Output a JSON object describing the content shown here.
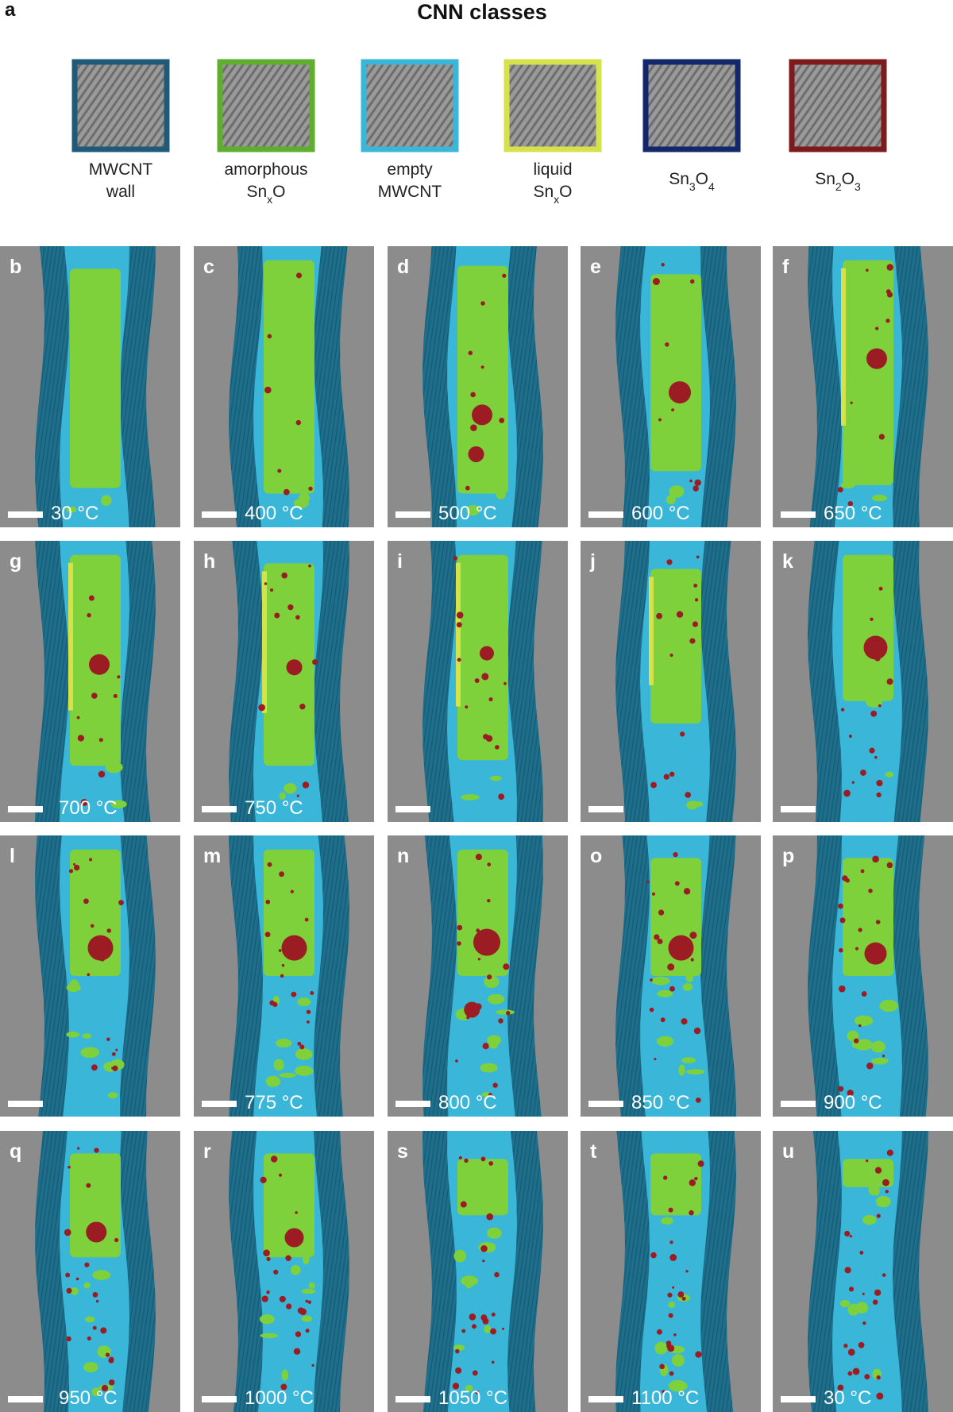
{
  "panel_a": {
    "letter": "a",
    "title": "CNN classes",
    "classes": [
      {
        "lines": [
          [
            "MWCNT"
          ],
          [
            "wall"
          ]
        ],
        "color": "#1f5a78"
      },
      {
        "lines": [
          [
            "amorphous"
          ],
          [
            "Sn",
            "x",
            "O"
          ]
        ],
        "color": "#5fae2e"
      },
      {
        "lines": [
          [
            "empty"
          ],
          [
            "MWCNT"
          ]
        ],
        "color": "#3ab6d8"
      },
      {
        "lines": [
          [
            "liquid"
          ],
          [
            "Sn",
            "x",
            "O"
          ]
        ],
        "color": "#d6e24a"
      },
      {
        "lines": [
          [
            "Sn",
            "3",
            "O",
            "4"
          ]
        ],
        "color": "#13286a"
      },
      {
        "lines": [
          [
            "Sn",
            "2",
            "O",
            "3"
          ]
        ],
        "color": "#7c1a1c"
      }
    ]
  },
  "panels": [
    {
      "letter": "b",
      "temperature": "30 °C"
    },
    {
      "letter": "c",
      "temperature": "400 °C"
    },
    {
      "letter": "d",
      "temperature": "500 °C"
    },
    {
      "letter": "e",
      "temperature": "600 °C"
    },
    {
      "letter": "f",
      "temperature": "650 °C"
    },
    {
      "letter": "g",
      "temperature": "700 °C"
    },
    {
      "letter": "h",
      "temperature": "750 °C"
    },
    {
      "letter": "i"
    },
    {
      "letter": "j"
    },
    {
      "letter": "k"
    },
    {
      "letter": "l"
    },
    {
      "letter": "m",
      "temperature": "775 °C"
    },
    {
      "letter": "n",
      "temperature": "800 °C"
    },
    {
      "letter": "o",
      "temperature": "850 °C"
    },
    {
      "letter": "p",
      "temperature": "900 °C"
    },
    {
      "letter": "q",
      "temperature": "950 °C"
    },
    {
      "letter": "r",
      "temperature": "1000 °C"
    },
    {
      "letter": "s",
      "temperature": "1050 °C"
    },
    {
      "letter": "t",
      "temperature": "1100 °C"
    },
    {
      "letter": "u",
      "temperature": "30 °C"
    }
  ]
}
